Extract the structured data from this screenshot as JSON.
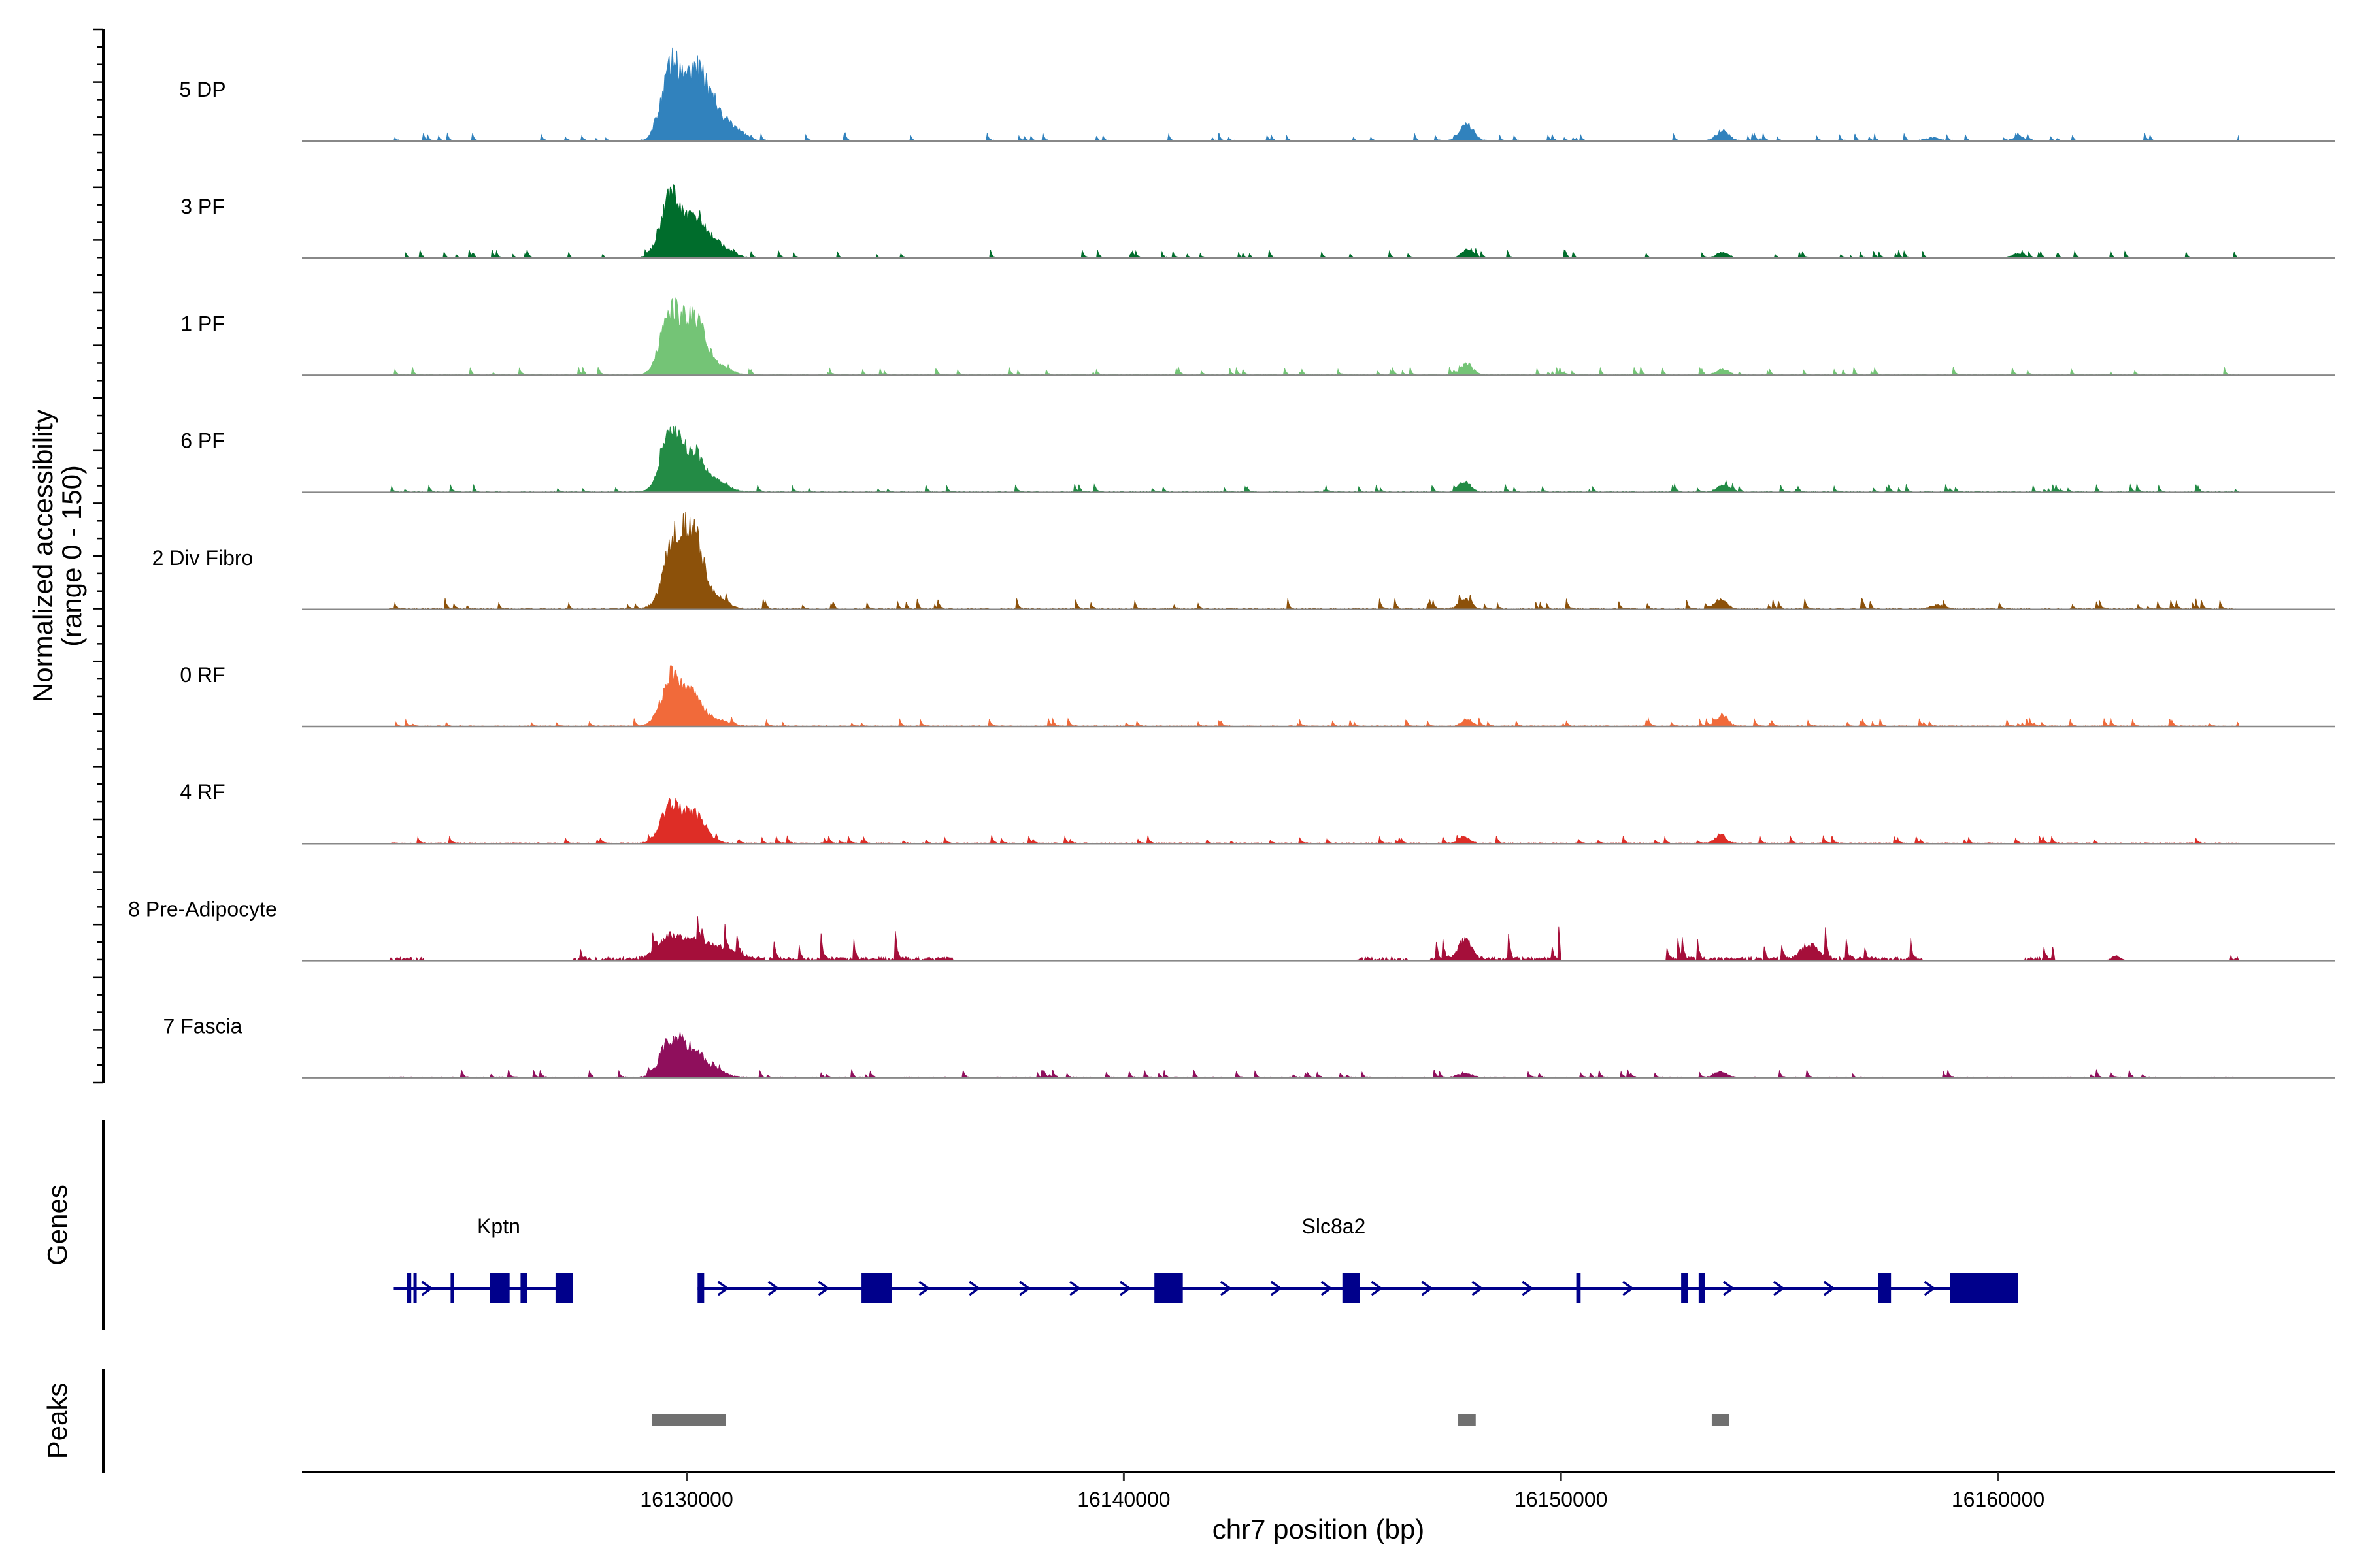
{
  "chart_data": {
    "type": "coverage",
    "y_axis": {
      "title_line1": "Normalized accessibility",
      "title_line2": "(range 0 - 150)",
      "range": [
        0,
        150
      ]
    },
    "x_axis": {
      "title": "chr7 position (bp)",
      "range": [
        16121200,
        16167700
      ],
      "ticks": [
        16130000,
        16140000,
        16150000,
        16160000
      ],
      "tick_labels": [
        "16130000",
        "16140000",
        "16150000",
        "16160000"
      ]
    },
    "data_extent": [
      16123200,
      16165500
    ],
    "tracks": [
      {
        "name": "5 DP",
        "color": "#3182bd",
        "noise": 3,
        "baseline_gaps": [],
        "peaks": [
          [
            16129650,
            120,
            220
          ],
          [
            16130250,
            105,
            260
          ],
          [
            16130750,
            32,
            260
          ],
          [
            16131200,
            10,
            200
          ],
          [
            16147850,
            26,
            150
          ],
          [
            16153700,
            16,
            140
          ],
          [
            16158500,
            5,
            150
          ],
          [
            16160500,
            5,
            150
          ]
        ]
      },
      {
        "name": "3 PF",
        "color": "#006d2c",
        "noise": 3,
        "baseline_gaps": [],
        "peaks": [
          [
            16129650,
            108,
            230
          ],
          [
            16130250,
            60,
            250
          ],
          [
            16130800,
            15,
            250
          ],
          [
            16147850,
            13,
            120
          ],
          [
            16153700,
            9,
            120
          ],
          [
            16160450,
            7,
            120
          ]
        ]
      },
      {
        "name": "1 PF",
        "color": "#74c476",
        "noise": 3,
        "baseline_gaps": [],
        "peaks": [
          [
            16129650,
            100,
            230
          ],
          [
            16130200,
            86,
            240
          ],
          [
            16130750,
            12,
            240
          ],
          [
            16147850,
            18,
            130
          ],
          [
            16153700,
            9,
            130
          ]
        ]
      },
      {
        "name": "6 PF",
        "color": "#238b45",
        "noise": 3,
        "baseline_gaps": [],
        "peaks": [
          [
            16129650,
            95,
            220
          ],
          [
            16130150,
            58,
            240
          ],
          [
            16130700,
            15,
            250
          ],
          [
            16147800,
            17,
            130
          ],
          [
            16153700,
            11,
            130
          ]
        ]
      },
      {
        "name": "2 Div Fibro",
        "color": "#8c510a",
        "noise": 4,
        "baseline_gaps": [],
        "peaks": [
          [
            16129700,
            105,
            230
          ],
          [
            16130150,
            108,
            230
          ],
          [
            16130700,
            15,
            240
          ],
          [
            16147800,
            16,
            130
          ],
          [
            16153650,
            16,
            130
          ],
          [
            16158600,
            6,
            160
          ]
        ]
      },
      {
        "name": "0 RF",
        "color": "#f16a3a",
        "noise": 3,
        "baseline_gaps": [],
        "peaks": [
          [
            16129650,
            77,
            230
          ],
          [
            16130150,
            45,
            220
          ],
          [
            16130700,
            10,
            240
          ],
          [
            16147850,
            11,
            120
          ],
          [
            16153700,
            18,
            120
          ]
        ]
      },
      {
        "name": "4 RF",
        "color": "#de2d26",
        "noise": 3,
        "baseline_gaps": [],
        "peaks": [
          [
            16129650,
            63,
            220
          ],
          [
            16130200,
            45,
            230
          ],
          [
            16147800,
            8,
            120
          ],
          [
            16153650,
            12,
            120
          ]
        ]
      },
      {
        "name": "8 Pre-Adipocyte",
        "color": "#a50f3a",
        "noise": 12,
        "baseline_gaps": [
          [
            16124000,
            16127400
          ],
          [
            16136100,
            16145300
          ],
          [
            16146500,
            16147000
          ],
          [
            16150000,
            16152400
          ],
          [
            16158300,
            16160600
          ],
          [
            16161300,
            16165300
          ]
        ],
        "peaks": [
          [
            16129600,
            33,
            260
          ],
          [
            16130200,
            28,
            300
          ],
          [
            16130900,
            15,
            300
          ],
          [
            16147800,
            30,
            150
          ],
          [
            16155700,
            22,
            200
          ],
          [
            16162700,
            7,
            100
          ]
        ]
      },
      {
        "name": "7 Fascia",
        "color": "#8f0f5c",
        "noise": 3,
        "baseline_gaps": [],
        "peaks": [
          [
            16129650,
            58,
            230
          ],
          [
            16130150,
            43,
            250
          ],
          [
            16130700,
            8,
            240
          ],
          [
            16147800,
            7,
            140
          ],
          [
            16153650,
            9,
            140
          ]
        ]
      }
    ],
    "genes": {
      "title": "Genes",
      "color": "#00008b",
      "items": [
        {
          "name": "Kptn",
          "label_pos": 16125700,
          "start": 16123300,
          "end": 16127400,
          "arrow_step": 1500,
          "exons": [
            [
              16123600,
              16123700
            ],
            [
              16123750,
              16123800
            ],
            [
              16124600,
              16124650
            ],
            [
              16125500,
              16125950
            ],
            [
              16126200,
              16126350
            ],
            [
              16127000,
              16127400
            ]
          ]
        },
        {
          "name": "Slc8a2",
          "label_pos": 16144800,
          "start": 16130250,
          "end": 16160450,
          "arrow_step": 1150,
          "exons": [
            [
              16130250,
              16130400
            ],
            [
              16134000,
              16134700
            ],
            [
              16140700,
              16141350
            ],
            [
              16145000,
              16145400
            ],
            [
              16150350,
              16150450
            ],
            [
              16152750,
              16152900
            ],
            [
              16153150,
              16153300
            ],
            [
              16157250,
              16157550
            ],
            [
              16158900,
              16160450
            ]
          ]
        }
      ]
    },
    "peaks_track": {
      "title": "Peaks",
      "color": "#707070",
      "regions": [
        [
          16129200,
          16130900
        ],
        [
          16147650,
          16148050
        ],
        [
          16153450,
          16153850
        ]
      ]
    }
  }
}
